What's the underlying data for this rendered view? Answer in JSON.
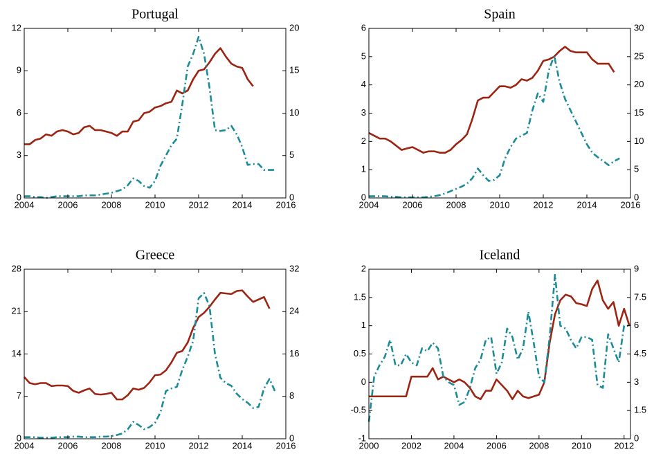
{
  "chart_data": [
    {
      "type": "line",
      "title": "Portugal",
      "x": [
        2004,
        2004.25,
        2004.5,
        2004.75,
        2005,
        2005.25,
        2005.5,
        2005.75,
        2006,
        2006.25,
        2006.5,
        2006.75,
        2007,
        2007.25,
        2007.5,
        2007.75,
        2008,
        2008.25,
        2008.5,
        2008.75,
        2009,
        2009.25,
        2009.5,
        2009.75,
        2010,
        2010.25,
        2010.5,
        2010.75,
        2011,
        2011.25,
        2011.5,
        2011.75,
        2012,
        2012.25,
        2012.5,
        2012.75,
        2013,
        2013.25,
        2013.5,
        2013.75,
        2014,
        2014.25,
        2014.5,
        2014.75,
        2015,
        2015.25,
        2015.5
      ],
      "xlim": [
        2004,
        2016
      ],
      "xticks": [
        2004,
        2006,
        2008,
        2010,
        2012,
        2014,
        2016
      ],
      "ylim": [
        0,
        12
      ],
      "yticks": [
        0,
        3,
        6,
        9,
        12
      ],
      "y2lim": [
        0,
        20
      ],
      "y2ticks": [
        0,
        5,
        10,
        15,
        20
      ],
      "series": [
        {
          "color": "#9c2412",
          "linestyle": "solid",
          "values": [
            3.8,
            3.8,
            4.1,
            4.2,
            4.5,
            4.4,
            4.7,
            4.8,
            4.7,
            4.5,
            4.6,
            5.0,
            5.1,
            4.8,
            4.8,
            4.7,
            4.6,
            4.4,
            4.7,
            4.7,
            5.4,
            5.5,
            6.0,
            6.1,
            6.4,
            6.5,
            6.7,
            6.8,
            7.6,
            7.4,
            7.6,
            8.4,
            9.0,
            9.1,
            9.6,
            10.2,
            10.6,
            10.0,
            9.5,
            9.3,
            9.2,
            8.4,
            7.9,
            null,
            null,
            null,
            null
          ]
        },
        {
          "color": "#1b8a99",
          "linestyle": "dashdot",
          "axis": "y2",
          "values": [
            0.2,
            0.2,
            0.1,
            0.1,
            0.0,
            0.1,
            0.2,
            0.2,
            0.2,
            0.2,
            0.2,
            0.3,
            0.3,
            0.3,
            0.4,
            0.5,
            0.6,
            0.8,
            1.0,
            1.5,
            2.3,
            2.0,
            1.4,
            1.2,
            2.0,
            3.8,
            5.0,
            6.2,
            7.0,
            11.0,
            15.5,
            17.0,
            19.0,
            17.0,
            13.0,
            8.0,
            7.9,
            8.0,
            8.5,
            7.5,
            6.0,
            3.9,
            4.0,
            4.0,
            3.3,
            3.3,
            3.3
          ]
        }
      ]
    },
    {
      "type": "line",
      "title": "Spain",
      "x": [
        2004,
        2004.25,
        2004.5,
        2004.75,
        2005,
        2005.25,
        2005.5,
        2005.75,
        2006,
        2006.25,
        2006.5,
        2006.75,
        2007,
        2007.25,
        2007.5,
        2007.75,
        2008,
        2008.25,
        2008.5,
        2008.75,
        2009,
        2009.25,
        2009.5,
        2009.75,
        2010,
        2010.25,
        2010.5,
        2010.75,
        2011,
        2011.25,
        2011.5,
        2011.75,
        2012,
        2012.25,
        2012.5,
        2012.75,
        2013,
        2013.25,
        2013.5,
        2013.75,
        2014,
        2014.25,
        2014.5,
        2014.75,
        2015,
        2015.25,
        2015.5
      ],
      "xlim": [
        2004,
        2016
      ],
      "xticks": [
        2004,
        2006,
        2008,
        2010,
        2012,
        2014,
        2016
      ],
      "ylim": [
        0,
        6
      ],
      "yticks": [
        0,
        1,
        2,
        3,
        4,
        5,
        6
      ],
      "y2lim": [
        0,
        30
      ],
      "y2ticks": [
        0,
        5,
        10,
        15,
        20,
        25,
        30
      ],
      "series": [
        {
          "color": "#9c2412",
          "linestyle": "solid",
          "values": [
            2.3,
            2.2,
            2.1,
            2.1,
            2.0,
            1.85,
            1.7,
            1.75,
            1.8,
            1.7,
            1.6,
            1.65,
            1.65,
            1.6,
            1.6,
            1.7,
            1.9,
            2.05,
            2.25,
            2.8,
            3.45,
            3.55,
            3.55,
            3.75,
            3.95,
            3.95,
            3.9,
            4.0,
            4.2,
            4.15,
            4.25,
            4.5,
            4.85,
            4.9,
            5.0,
            5.2,
            5.35,
            5.2,
            5.15,
            5.15,
            5.15,
            4.9,
            4.75,
            4.75,
            4.75,
            4.45,
            null
          ]
        },
        {
          "color": "#1b8a99",
          "linestyle": "dashdot",
          "axis": "y2",
          "values": [
            0.3,
            0.3,
            0.3,
            0.3,
            0.2,
            0.2,
            0.1,
            0.1,
            0.1,
            0.1,
            0.1,
            0.2,
            0.3,
            0.5,
            0.8,
            1.2,
            1.6,
            2.0,
            2.5,
            3.5,
            5.2,
            4.0,
            3.0,
            3.2,
            4.0,
            7.0,
            9.0,
            10.5,
            11.0,
            11.5,
            15.5,
            18.5,
            17.0,
            22.5,
            25.2,
            20.5,
            17.5,
            15.5,
            13.5,
            11.5,
            9.5,
            8.0,
            7.2,
            6.5,
            5.8,
            6.5,
            7.0
          ]
        }
      ]
    },
    {
      "type": "line",
      "title": "Greece",
      "x": [
        2004,
        2004.25,
        2004.5,
        2004.75,
        2005,
        2005.25,
        2005.5,
        2005.75,
        2006,
        2006.25,
        2006.5,
        2006.75,
        2007,
        2007.25,
        2007.5,
        2007.75,
        2008,
        2008.25,
        2008.5,
        2008.75,
        2009,
        2009.25,
        2009.5,
        2009.75,
        2010,
        2010.25,
        2010.5,
        2010.75,
        2011,
        2011.25,
        2011.5,
        2011.75,
        2012,
        2012.25,
        2012.5,
        2012.75,
        2013,
        2013.25,
        2013.5,
        2013.75,
        2014,
        2014.25,
        2014.5,
        2014.75,
        2015,
        2015.25,
        2015.5
      ],
      "xlim": [
        2004,
        2016
      ],
      "xticks": [
        2004,
        2006,
        2008,
        2010,
        2012,
        2014,
        2016
      ],
      "ylim": [
        0,
        28
      ],
      "yticks": [
        0,
        7,
        14,
        21,
        28
      ],
      "y2lim": [
        0,
        32
      ],
      "y2ticks": [
        0,
        8,
        16,
        24,
        32
      ],
      "series": [
        {
          "color": "#9c2412",
          "linestyle": "solid",
          "values": [
            10.2,
            9.2,
            9.0,
            9.2,
            9.2,
            8.7,
            8.8,
            8.8,
            8.7,
            7.9,
            7.6,
            8.0,
            8.3,
            7.4,
            7.3,
            7.4,
            7.6,
            6.5,
            6.5,
            7.2,
            8.3,
            8.1,
            8.4,
            9.3,
            10.5,
            10.6,
            11.3,
            12.6,
            14.2,
            14.5,
            15.9,
            18.3,
            20.1,
            20.8,
            21.8,
            23.0,
            24.1,
            24.0,
            23.9,
            24.4,
            24.5,
            23.5,
            22.6,
            23.0,
            23.4,
            21.5,
            null
          ]
        },
        {
          "color": "#1b8a99",
          "linestyle": "dashdot",
          "axis": "y2",
          "values": [
            0.3,
            0.3,
            0.3,
            0.2,
            0.2,
            0.2,
            0.3,
            0.3,
            0.3,
            0.4,
            0.4,
            0.3,
            0.3,
            0.3,
            0.4,
            0.4,
            0.5,
            0.7,
            1.0,
            1.8,
            3.2,
            2.6,
            1.8,
            2.2,
            3.0,
            5.0,
            9.0,
            9.5,
            9.8,
            13.0,
            15.5,
            18.5,
            26.5,
            27.5,
            25.0,
            16.0,
            11.5,
            10.5,
            10.0,
            8.5,
            7.5,
            6.8,
            5.8,
            6.0,
            9.5,
            11.3,
            9.0
          ]
        }
      ]
    },
    {
      "type": "line",
      "title": "Iceland",
      "x": [
        2000,
        2000.25,
        2000.5,
        2000.75,
        2001,
        2001.25,
        2001.5,
        2001.75,
        2002,
        2002.25,
        2002.5,
        2002.75,
        2003,
        2003.25,
        2003.5,
        2003.75,
        2004,
        2004.25,
        2004.5,
        2004.75,
        2005,
        2005.25,
        2005.5,
        2005.75,
        2006,
        2006.25,
        2006.5,
        2006.75,
        2007,
        2007.25,
        2007.5,
        2007.75,
        2008,
        2008.25,
        2008.5,
        2008.75,
        2009,
        2009.25,
        2009.5,
        2009.75,
        2010,
        2010.25,
        2010.5,
        2010.75,
        2011,
        2011.25,
        2011.5,
        2011.75,
        2012,
        2012.25
      ],
      "xlim": [
        2000,
        2012.3
      ],
      "xticks": [
        2000,
        2002,
        2004,
        2006,
        2008,
        2010,
        2012
      ],
      "ylim": [
        -1,
        2
      ],
      "yticks": [
        -1,
        -0.5,
        0,
        0.5,
        1,
        1.5,
        2
      ],
      "y2lim": [
        0,
        9
      ],
      "y2ticks": [
        0,
        1.5,
        3,
        4.5,
        6,
        7.5,
        9
      ],
      "series": [
        {
          "color": "#9c2412",
          "linestyle": "solid",
          "values": [
            -0.25,
            -0.25,
            -0.25,
            -0.25,
            -0.25,
            -0.25,
            -0.25,
            -0.25,
            0.1,
            0.1,
            0.1,
            0.1,
            0.25,
            0.05,
            0.1,
            0.05,
            0.0,
            0.05,
            0.0,
            -0.1,
            -0.25,
            -0.3,
            -0.15,
            -0.15,
            0.05,
            -0.05,
            -0.15,
            -0.3,
            -0.15,
            -0.25,
            -0.28,
            -0.25,
            -0.22,
            0.0,
            0.7,
            1.2,
            1.45,
            1.55,
            1.52,
            1.4,
            1.38,
            1.35,
            1.65,
            1.8,
            1.45,
            1.3,
            1.42,
            1.0,
            1.3,
            1.0
          ]
        },
        {
          "color": "#1b8a99",
          "linestyle": "dashdot",
          "axis": "y2",
          "values": [
            0.9,
            3.3,
            3.9,
            4.35,
            5.25,
            3.9,
            3.9,
            4.5,
            4.05,
            3.9,
            4.8,
            4.65,
            5.1,
            4.8,
            3.3,
            3.0,
            2.85,
            1.8,
            1.95,
            2.7,
            3.75,
            4.2,
            5.25,
            5.4,
            3.45,
            4.05,
            5.85,
            5.4,
            4.2,
            4.8,
            6.75,
            5.1,
            3.3,
            3.0,
            5.4,
            8.7,
            6.0,
            5.85,
            5.25,
            4.8,
            5.4,
            5.4,
            5.25,
            2.85,
            2.7,
            5.55,
            4.8,
            4.05,
            6.0,
            6.0
          ]
        }
      ]
    }
  ]
}
